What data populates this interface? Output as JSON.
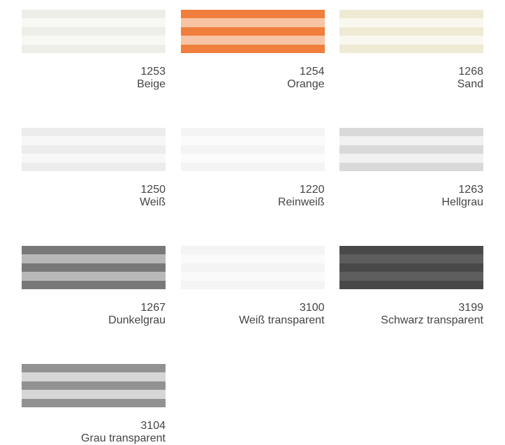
{
  "swatches": [
    {
      "code": "1253",
      "name": "Beige",
      "colors": [
        "#eeeee8",
        "#f8f8f4"
      ]
    },
    {
      "code": "1254",
      "name": "Orange",
      "colors": [
        "#f07e3c",
        "#f7c4a4"
      ]
    },
    {
      "code": "1268",
      "name": "Sand",
      "colors": [
        "#eeead4",
        "#f9f8ef"
      ]
    },
    {
      "code": "1250",
      "name": "Weiß",
      "colors": [
        "#ececec",
        "#f7f7f7"
      ]
    },
    {
      "code": "1220",
      "name": "Reinweiß",
      "colors": [
        "#f4f4f4",
        "#fbfbfb"
      ]
    },
    {
      "code": "1263",
      "name": "Hellgrau",
      "colors": [
        "#d9d9d9",
        "#f1f1f1"
      ]
    },
    {
      "code": "1267",
      "name": "Dunkelgrau",
      "colors": [
        "#787878",
        "#b8b8b8"
      ]
    },
    {
      "code": "3100",
      "name": "Weiß transparent",
      "colors": [
        "#f4f4f4",
        "#fafafa"
      ]
    },
    {
      "code": "3199",
      "name": "Schwarz transparent",
      "colors": [
        "#494949",
        "#5e5e5e"
      ]
    },
    {
      "code": "3104",
      "name": "Grau transparent",
      "colors": [
        "#929292",
        "#d6d6d6"
      ]
    }
  ]
}
